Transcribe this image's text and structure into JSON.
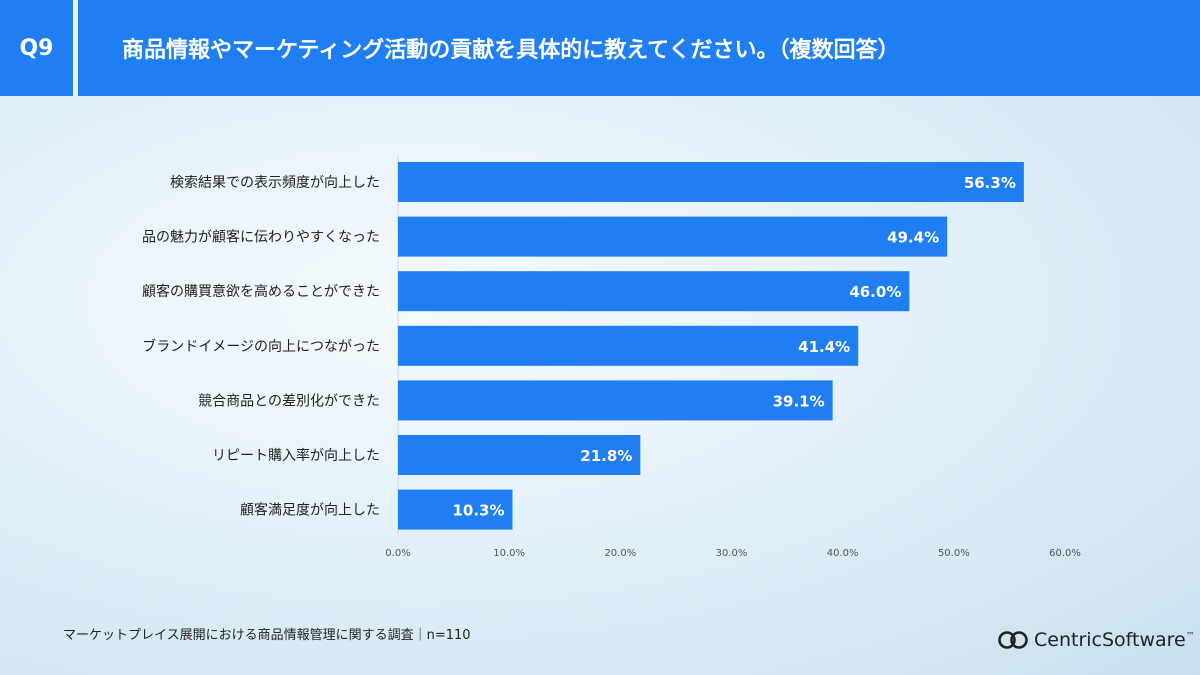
{
  "header": {
    "question_number": "Q9",
    "title": "商品情報やマーケティング活動の貢献を具体的に教えてください。（複数回答）"
  },
  "chart_data": {
    "type": "bar",
    "orientation": "horizontal",
    "title": "",
    "xlabel": "",
    "ylabel": "",
    "categories": [
      "検索結果での表示頻度が向上した",
      "品の魅力が顧客に伝わりやすくなった",
      "顧客の購買意欲を高めることができた",
      "ブランドイメージの向上につながった",
      "競合商品との差別化ができた",
      "リピート購入率が向上した",
      "顧客満足度が向上した"
    ],
    "values": [
      56.3,
      49.4,
      46.0,
      41.4,
      39.1,
      21.8,
      10.3
    ],
    "value_labels": [
      "56.3%",
      "49.4%",
      "46.0%",
      "41.4%",
      "39.1%",
      "21.8%",
      "10.3%"
    ],
    "xlim": [
      0,
      60
    ],
    "xticks": [
      0,
      10,
      20,
      30,
      40,
      50,
      60
    ],
    "xtick_labels": [
      "0.0%",
      "10.0%",
      "20.0%",
      "30.0%",
      "40.0%",
      "50.0%",
      "60.0%"
    ],
    "grid": false,
    "legend": "none",
    "bar_color": "#1f7ff2"
  },
  "footer": {
    "note": "マーケットプレイス展開における商品情報管理に関する調査｜n=110",
    "brand_name": "CentricSoftware",
    "brand_mark": "™"
  },
  "colors": {
    "accent": "#1f7ff2",
    "text": "#222222",
    "axis_text": "#555555"
  }
}
